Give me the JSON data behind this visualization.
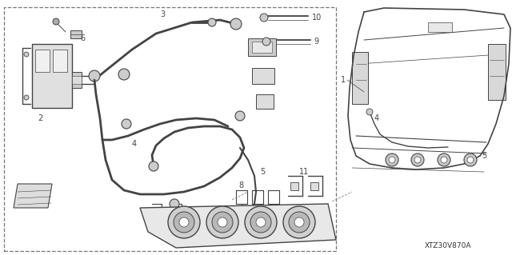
{
  "bg_color": "#f5f5f5",
  "diagram_code": "XTZ30V870A",
  "fig_width": 6.4,
  "fig_height": 3.19,
  "dpi": 100,
  "line_color": "#444444",
  "dash_color": "#666666"
}
